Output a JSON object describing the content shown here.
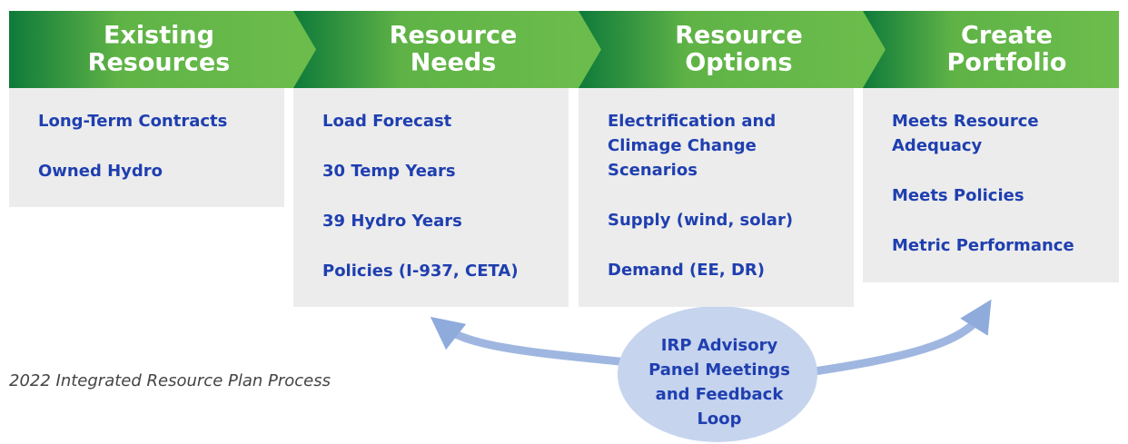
{
  "columns": [
    {
      "title": [
        "Existing",
        "Resources"
      ],
      "items": [
        [
          "Long-Term Contracts"
        ],
        [
          "Owned Hydro"
        ]
      ]
    },
    {
      "title": [
        "Resource",
        "Needs"
      ],
      "items": [
        [
          "Load Forecast"
        ],
        [
          "30 Temp Years"
        ],
        [
          "39 Hydro Years"
        ],
        [
          "Policies (I-937, CETA)"
        ]
      ]
    },
    {
      "title": [
        "Resource",
        "Options"
      ],
      "items": [
        [
          "Electrification and",
          "Climage Change",
          "Scenarios"
        ],
        [
          "Supply (wind, solar)"
        ],
        [
          "Demand (EE, DR)"
        ]
      ]
    },
    {
      "title": [
        "Create",
        "Portfolio"
      ],
      "items": [
        [
          "Meets Resource",
          "Adequacy"
        ],
        [
          "Meets Policies"
        ],
        [
          "Metric Performance"
        ]
      ]
    }
  ],
  "feedback": [
    "IRP Advisory",
    "Panel Meetings",
    "and Feedback",
    "Loop"
  ],
  "caption": "2022 Integrated Resource Plan Process"
}
